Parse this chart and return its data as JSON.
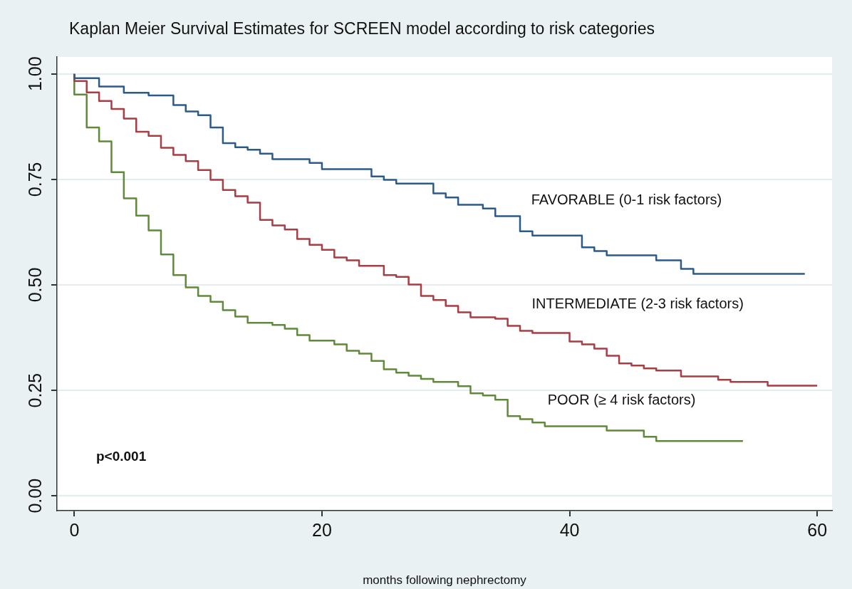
{
  "chart_data": {
    "type": "step",
    "title": "Kaplan Meier Survival Estimates for SCREEN model according to risk categories",
    "xlabel": "months following nephrectomy",
    "xlim": [
      -1.4,
      61.2
    ],
    "xticks": [
      0,
      20,
      40,
      60
    ],
    "ylim": [
      -0.035,
      1.04
    ],
    "yticks": [
      {
        "value": 0,
        "label": "0.00"
      },
      {
        "value": 0.25,
        "label": "0.25"
      },
      {
        "value": 0.5,
        "label": "0.50"
      },
      {
        "value": 0.75,
        "label": "0.75"
      },
      {
        "value": 1,
        "label": "1.00"
      }
    ],
    "grid": "y",
    "legend": false,
    "line_style": "solid",
    "marker": "none",
    "series": [
      {
        "name": "FAVORABLE (0-1 risk factors)",
        "color": "#2b5b8a",
        "x": [
          0,
          2,
          4,
          6,
          8,
          9,
          10,
          11,
          12,
          13,
          14,
          15,
          16,
          19,
          20,
          24,
          25,
          26,
          29,
          30,
          31,
          33,
          34,
          36,
          37,
          41,
          42,
          43,
          47,
          49,
          50,
          52,
          59
        ],
        "values": [
          1.0,
          0.99,
          0.97,
          0.955,
          0.949,
          0.926,
          0.911,
          0.902,
          0.873,
          0.836,
          0.826,
          0.82,
          0.811,
          0.798,
          0.789,
          0.774,
          0.757,
          0.749,
          0.74,
          0.717,
          0.707,
          0.69,
          0.681,
          0.663,
          0.627,
          0.617,
          0.589,
          0.58,
          0.57,
          0.558,
          0.538,
          0.526,
          0.526
        ]
      },
      {
        "name": "INTERMEDIATE (2-3 risk factors)",
        "color": "#a83d44",
        "x": [
          0,
          1,
          2,
          3,
          4,
          5,
          6,
          7,
          8,
          9,
          10,
          11,
          12,
          13,
          14,
          15,
          16,
          17,
          18,
          19,
          20,
          21,
          22,
          23,
          25,
          26,
          27,
          28,
          29,
          30,
          31,
          32,
          34,
          35,
          36,
          37,
          40,
          41,
          42,
          43,
          44,
          45,
          46,
          47,
          49,
          52,
          53,
          56,
          57,
          60
        ],
        "values": [
          1.0,
          0.983,
          0.956,
          0.936,
          0.917,
          0.894,
          0.863,
          0.853,
          0.825,
          0.808,
          0.793,
          0.772,
          0.749,
          0.725,
          0.71,
          0.695,
          0.654,
          0.641,
          0.631,
          0.609,
          0.595,
          0.583,
          0.565,
          0.558,
          0.545,
          0.523,
          0.519,
          0.501,
          0.474,
          0.464,
          0.45,
          0.435,
          0.423,
          0.42,
          0.403,
          0.391,
          0.386,
          0.366,
          0.359,
          0.349,
          0.332,
          0.314,
          0.309,
          0.302,
          0.297,
          0.283,
          0.275,
          0.27,
          0.261,
          0.261
        ]
      },
      {
        "name": "POOR (≥ 4 risk factors)",
        "color": "#5f8a3a",
        "x": [
          0,
          1,
          2,
          3,
          4,
          5,
          6,
          7,
          8,
          9,
          10,
          11,
          12,
          13,
          14,
          16,
          17,
          18,
          19,
          21,
          22,
          23,
          24,
          25,
          26,
          27,
          28,
          29,
          31,
          32,
          33,
          34,
          35,
          36,
          37,
          38,
          43,
          46,
          47,
          48,
          54
        ],
        "values": [
          1.0,
          0.951,
          0.873,
          0.84,
          0.767,
          0.705,
          0.664,
          0.629,
          0.572,
          0.523,
          0.494,
          0.474,
          0.46,
          0.44,
          0.425,
          0.41,
          0.405,
          0.396,
          0.381,
          0.368,
          0.359,
          0.344,
          0.337,
          0.32,
          0.3,
          0.292,
          0.285,
          0.277,
          0.27,
          0.26,
          0.243,
          0.238,
          0.228,
          0.189,
          0.182,
          0.174,
          0.165,
          0.155,
          0.14,
          0.13,
          0.13
        ]
      }
    ],
    "annotations": [
      "p<0.001"
    ]
  }
}
